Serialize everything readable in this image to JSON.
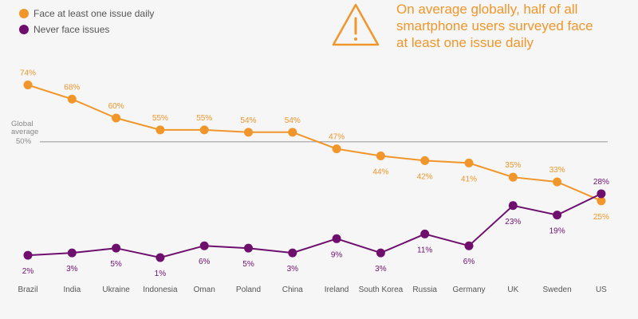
{
  "chart_data": {
    "type": "line",
    "categories": [
      "Brazil",
      "India",
      "Ukraine",
      "Indonesia",
      "Oman",
      "Poland",
      "China",
      "Ireland",
      "South Korea",
      "Russia",
      "Germany",
      "UK",
      "Sweden",
      "US"
    ],
    "series": [
      {
        "name": "Face at least one issue daily",
        "color": "#f0962b",
        "values": [
          74,
          68,
          60,
          55,
          55,
          54,
          54,
          47,
          44,
          42,
          41,
          35,
          33,
          25
        ],
        "labels": [
          "74%",
          "68%",
          "60%",
          "55%",
          "55%",
          "54%",
          "54%",
          "47%",
          "44%",
          "42%",
          "41%",
          "35%",
          "33%",
          "25%"
        ],
        "label_positions": [
          "above",
          "above",
          "above",
          "above",
          "above",
          "above",
          "above",
          "above",
          "below",
          "below",
          "below",
          "above",
          "above",
          "below"
        ]
      },
      {
        "name": "Never face issues",
        "color": "#6e0f6e",
        "values": [
          2,
          3,
          5,
          1,
          6,
          5,
          3,
          9,
          3,
          11,
          6,
          23,
          19,
          28
        ],
        "labels": [
          "2%",
          "3%",
          "5%",
          "1%",
          "6%",
          "5%",
          "3%",
          "9%",
          "3%",
          "11%",
          "6%",
          "23%",
          "19%",
          "28%"
        ],
        "label_positions": [
          "below",
          "below",
          "below",
          "below",
          "below",
          "below",
          "below",
          "below",
          "below",
          "below",
          "below",
          "below",
          "below",
          "above"
        ]
      }
    ],
    "reference_line": {
      "value": 50,
      "label_lines": [
        "Global",
        "average",
        "50%"
      ],
      "color": "#b5b5b5"
    },
    "ylim": [
      0,
      80
    ],
    "grid": false,
    "legend": "top-left",
    "annotation": {
      "icon": "warning-triangle-icon",
      "lines": [
        "On average globally, half of all",
        "smartphone users surveyed face",
        "at least one issue daily"
      ],
      "color": "#f0962b"
    },
    "title": "",
    "xlabel": "",
    "ylabel": ""
  }
}
